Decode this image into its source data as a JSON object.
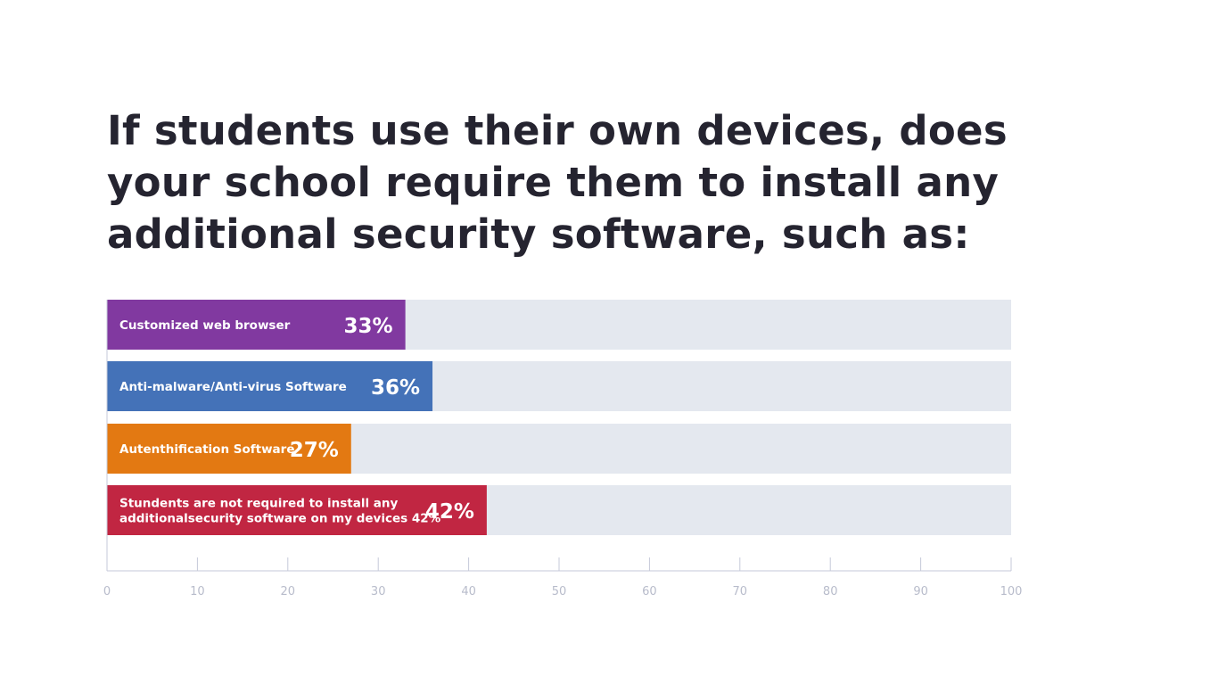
{
  "chart_data": {
    "type": "bar",
    "orientation": "horizontal",
    "title": "If students use their own devices, does your school require them to install any additional security software, such as:",
    "categories": [
      [
        "Customized web browser"
      ],
      [
        "Anti-malware/Anti-virus Software"
      ],
      [
        "Autenthification Software"
      ],
      [
        "Stundents are not required to install any",
        "additionalsecurity software on my devices 42%"
      ]
    ],
    "values": [
      33,
      36,
      27,
      42
    ],
    "value_labels": [
      "33%",
      "36%",
      "27%",
      "42%"
    ],
    "colors": [
      "#8139a0",
      "#4472b8",
      "#e37912",
      "#c12642"
    ],
    "track_color": "#e4e8ef",
    "xlim": [
      0,
      100
    ],
    "xticks": [
      "0",
      "10",
      "20",
      "30",
      "40",
      "50",
      "60",
      "70",
      "80",
      "90",
      "100"
    ],
    "xlabel": "",
    "ylabel": "",
    "grid": false
  }
}
